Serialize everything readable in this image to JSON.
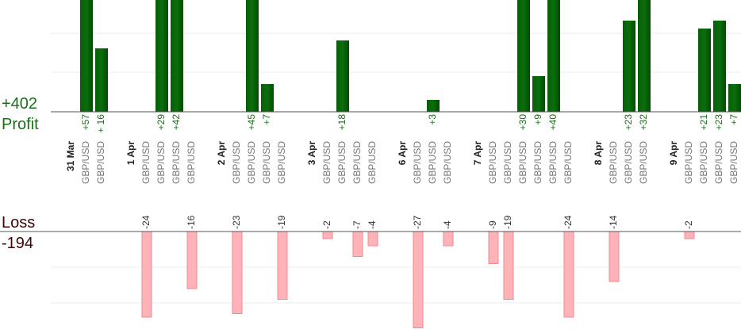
{
  "profit": {
    "label": "Profit",
    "total": "+402"
  },
  "loss": {
    "label": "Loss",
    "total": "-194"
  },
  "days": [
    {
      "date": "31 Mar",
      "trades": [
        {
          "pair": "GBP/USD",
          "value": 57,
          "value_label": "+57"
        },
        {
          "pair": "GBP/USD",
          "value": 16,
          "value_label": "+ 16"
        }
      ]
    },
    {
      "date": "1 Apr",
      "trades": [
        {
          "pair": "GBP/USD",
          "value": -24
        },
        {
          "pair": "GBP/USD",
          "value": 29,
          "value_label": "+29"
        },
        {
          "pair": "GBP/USD",
          "value": 42,
          "value_label": "+42"
        },
        {
          "pair": "GBP/USD",
          "value": -16
        }
      ]
    },
    {
      "date": "2 Apr",
      "trades": [
        {
          "pair": "GBP/USD",
          "value": -23
        },
        {
          "pair": "GBP/USD",
          "value": 45,
          "value_label": "+45"
        },
        {
          "pair": "GBP/USD",
          "value": 7,
          "value_label": "+7"
        },
        {
          "pair": "GBP/USD",
          "value": -19
        }
      ]
    },
    {
      "date": "3 Apr",
      "trades": [
        {
          "pair": "GBP/USD",
          "value": -2
        },
        {
          "pair": "GBP/USD",
          "value": 18,
          "value_label": "+18"
        },
        {
          "pair": "GBP/USD",
          "value": -7
        },
        {
          "pair": "GBP/USD",
          "value": -4
        }
      ]
    },
    {
      "date": "6 Apr",
      "trades": [
        {
          "pair": "GBP/USD",
          "value": -27
        },
        {
          "pair": "GBP/USD",
          "value": 3,
          "value_label": "+3"
        },
        {
          "pair": "GBP/USD",
          "value": -4
        }
      ]
    },
    {
      "date": "7 Apr",
      "trades": [
        {
          "pair": "GBP/USD",
          "value": -9
        },
        {
          "pair": "GBP/USD",
          "value": -19
        },
        {
          "pair": "GBP/USD",
          "value": 30,
          "value_label": "+30"
        },
        {
          "pair": "GBP/USD",
          "value": 9,
          "value_label": "+9"
        },
        {
          "pair": "GBP/USD",
          "value": 40,
          "value_label": "+40"
        },
        {
          "pair": "GBP/USD",
          "value": -24
        }
      ]
    },
    {
      "date": "8 Apr",
      "trades": [
        {
          "pair": "GBP/USD",
          "value": -14
        },
        {
          "pair": "GBP/USD",
          "value": 23,
          "value_label": "+23"
        },
        {
          "pair": "GBP/USD",
          "value": 32,
          "value_label": "+32"
        }
      ]
    },
    {
      "date": "9 Apr",
      "trades": [
        {
          "pair": "GBP/USD",
          "value": -2
        },
        {
          "pair": "GBP/USD",
          "value": 21,
          "value_label": "+21"
        },
        {
          "pair": "GBP/USD",
          "value": 23,
          "value_label": "+23"
        },
        {
          "pair": "GBP/USD",
          "value": 7,
          "value_label": "+7"
        }
      ]
    }
  ]
}
